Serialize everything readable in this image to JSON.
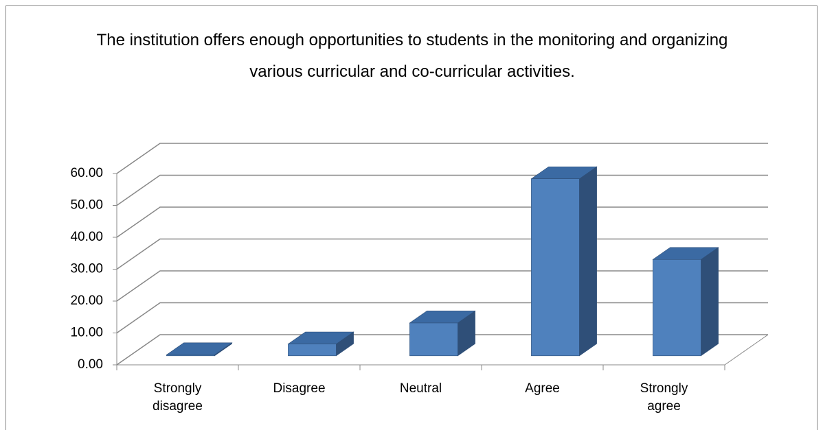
{
  "chart_data": {
    "type": "bar3d",
    "title": "The institution offers enough opportunities to students in the monitoring and organizing various curricular and co-curricular activities.",
    "categories": [
      "Strongly disagree",
      "Disagree",
      "Neutral",
      "Agree",
      "Strongly agree"
    ],
    "values": [
      0.3,
      3.7,
      10.3,
      55.5,
      30.2
    ],
    "color": "#4f81bd",
    "ylim": [
      0,
      60
    ],
    "yticks": [
      {
        "value": 0,
        "label": "0.00"
      },
      {
        "value": 10,
        "label": "10.00"
      },
      {
        "value": 20,
        "label": "20.00"
      },
      {
        "value": 30,
        "label": "30.00"
      },
      {
        "value": 40,
        "label": "40.00"
      },
      {
        "value": 50,
        "label": "50.00"
      },
      {
        "value": 60,
        "label": "60.00"
      }
    ],
    "grid": true
  }
}
